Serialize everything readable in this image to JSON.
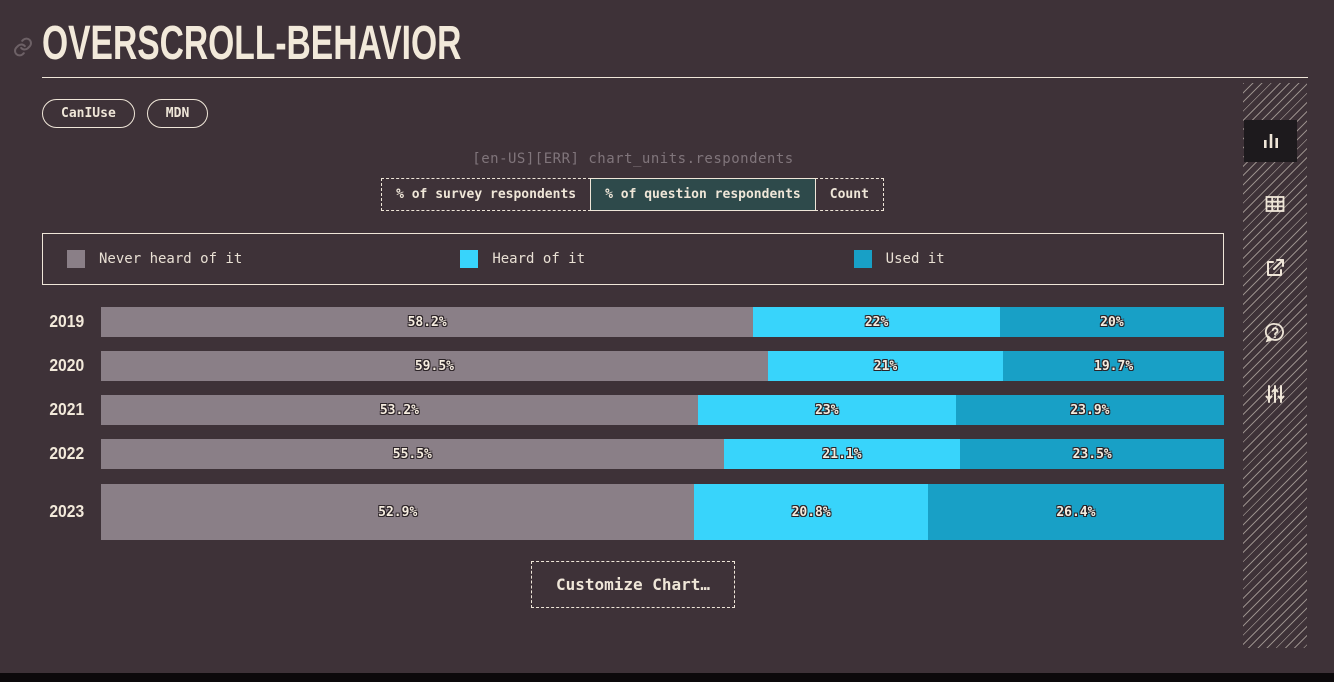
{
  "page": {
    "title": "OVERSCROLL-BEHAVIOR",
    "links": [
      {
        "label": "CanIUse"
      },
      {
        "label": "MDN"
      }
    ],
    "error_text": "[en-US][ERR] chart_units.respondents",
    "customize_button": "Customize Chart…"
  },
  "tabs": [
    {
      "label": "% of survey respondents",
      "selected": false
    },
    {
      "label": "% of question respondents",
      "selected": true
    },
    {
      "label": "Count",
      "selected": false
    }
  ],
  "legend": [
    {
      "label": "Never heard of it",
      "color": "#8a7f87"
    },
    {
      "label": "Heard of it",
      "color": "#38d4fb"
    },
    {
      "label": "Used it",
      "color": "#18a0c6"
    }
  ],
  "chart_data": {
    "type": "bar",
    "stacked": true,
    "orientation": "horizontal",
    "unit": "% of question respondents",
    "categories": [
      "2019",
      "2020",
      "2021",
      "2022",
      "2023"
    ],
    "series": [
      {
        "name": "Never heard of it",
        "color": "#8a7f87",
        "values": [
          58.2,
          59.5,
          53.2,
          55.5,
          52.9
        ]
      },
      {
        "name": "Heard of it",
        "color": "#38d4fb",
        "values": [
          22,
          21,
          23,
          21.1,
          20.8
        ]
      },
      {
        "name": "Used it",
        "color": "#18a0c6",
        "values": [
          20,
          19.7,
          23.9,
          23.5,
          26.4
        ]
      }
    ],
    "value_labels": [
      [
        "58.2%",
        "22%",
        "20%"
      ],
      [
        "59.5%",
        "21%",
        "19.7%"
      ],
      [
        "53.2%",
        "23%",
        "23.9%"
      ],
      [
        "55.5%",
        "21.1%",
        "23.5%"
      ],
      [
        "52.9%",
        "20.8%",
        "26.4%"
      ]
    ],
    "current_category": "2023",
    "xlim": [
      0,
      100
    ],
    "grid": false,
    "legend_position": "top"
  },
  "sidebar": {
    "icons": [
      {
        "name": "bar-chart",
        "active": true
      },
      {
        "name": "table",
        "active": false
      },
      {
        "name": "external-link",
        "active": false
      },
      {
        "name": "help",
        "active": false
      },
      {
        "name": "filters",
        "active": false
      }
    ]
  },
  "colors": {
    "background": "#3e3238",
    "text": "#efe6d8",
    "muted_text": "#80757b",
    "selected_tab_bg": "#2e4a4b",
    "active_icon_bg": "#1d1a1d",
    "bottom_strip": "#0c090b"
  }
}
